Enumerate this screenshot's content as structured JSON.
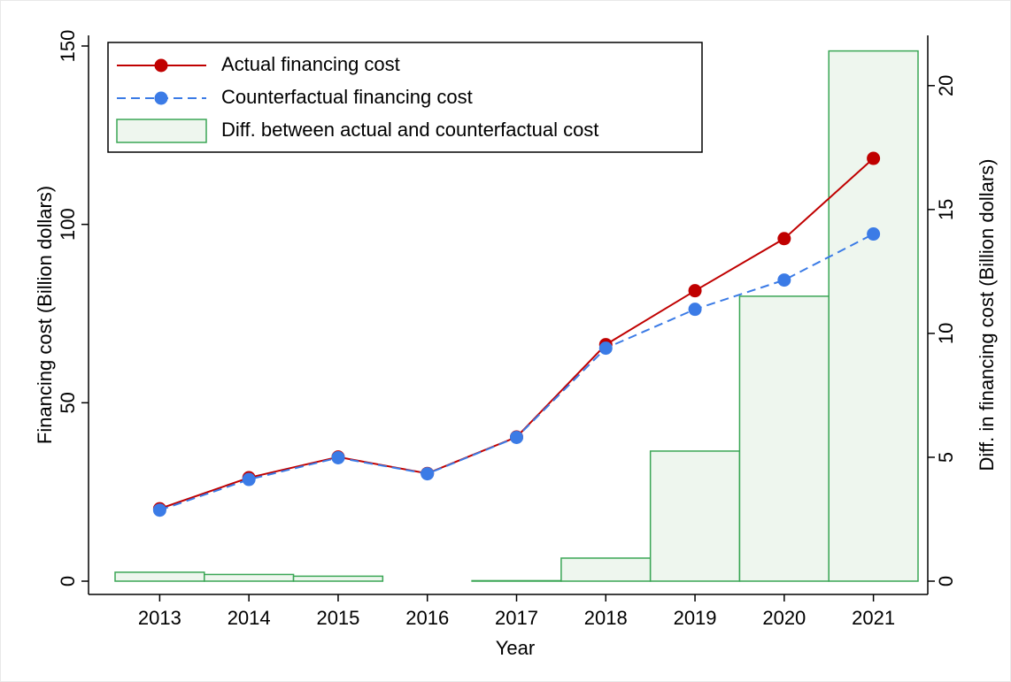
{
  "chart_data": {
    "type": "line",
    "xlabel": "Year",
    "ylabel": "Financing cost (Billion dollars)",
    "y2label": "Diff. in financing cost (Billion dollars)",
    "categories": [
      "2013",
      "2014",
      "2015",
      "2016",
      "2017",
      "2018",
      "2019",
      "2020",
      "2021"
    ],
    "series": [
      {
        "name": "Actual financing cost",
        "type": "line",
        "color": "#c00000",
        "dash": false,
        "values": [
          20.3,
          29,
          34.8,
          30.2,
          40.4,
          66.3,
          81.4,
          96,
          118.5
        ]
      },
      {
        "name": "Counterfactual financing cost",
        "type": "line",
        "color": "#3b7be6",
        "dash": true,
        "values": [
          19.9,
          28.5,
          34.6,
          30.1,
          40.3,
          65.3,
          76.2,
          84.4,
          97.3
        ]
      },
      {
        "name": "Diff. between actual and counterfactual cost",
        "type": "bar",
        "axis": "y2",
        "color": "#3aa655",
        "fill": "#eef6ee",
        "values": [
          0.36,
          0.27,
          0.2,
          null,
          0.02,
          0.93,
          5.25,
          11.5,
          21.4
        ]
      }
    ],
    "ylim": [
      0,
      150
    ],
    "yticks": [
      0,
      50,
      100,
      150
    ],
    "y2lim": [
      0,
      21.6
    ],
    "y2ticks": [
      0,
      5,
      10,
      15,
      20
    ],
    "grid": false,
    "legend": "top-left"
  }
}
